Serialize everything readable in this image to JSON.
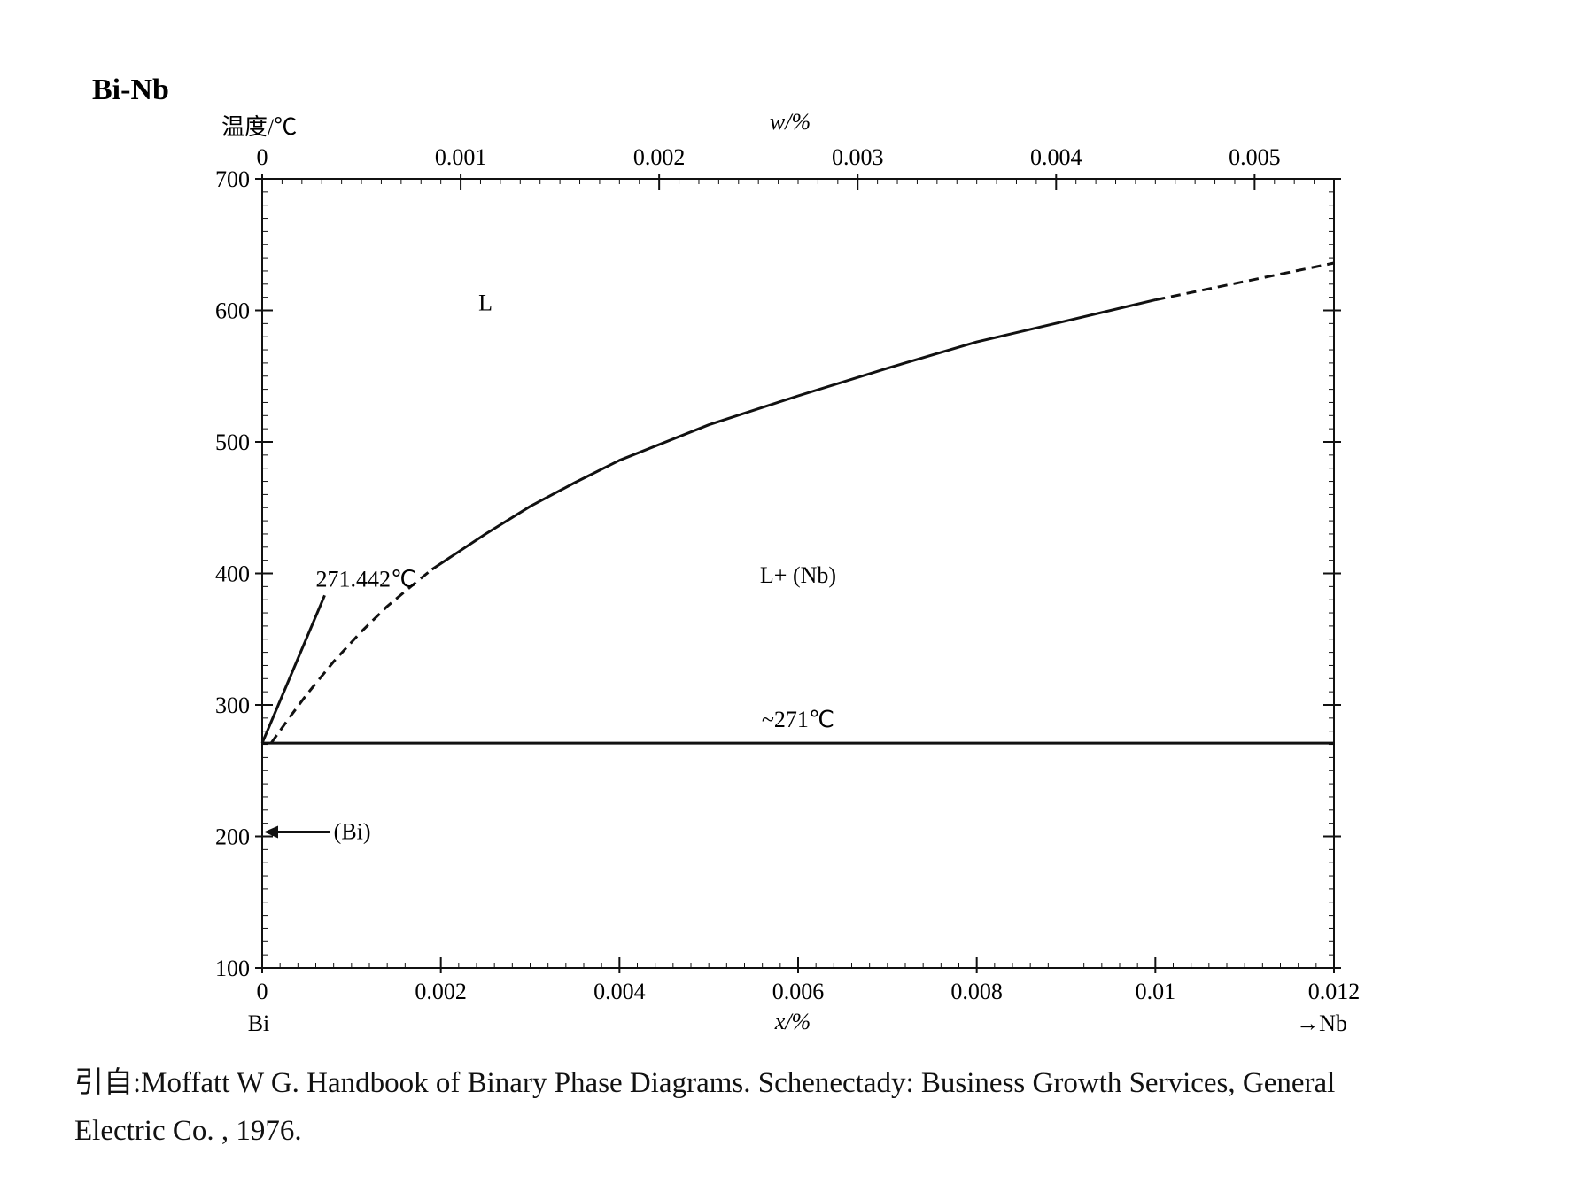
{
  "chart_data": {
    "type": "line",
    "title": "Bi-Nb",
    "ylabel": "温度/℃",
    "xlabel": "x/%",
    "x2label": "w/%",
    "x_left_end_label": "Bi",
    "x_right_end_label": "→Nb",
    "xlim": [
      0,
      0.012
    ],
    "ylim": [
      100,
      700
    ],
    "x_ticks": [
      "0",
      "0.002",
      "0.004",
      "0.006",
      "0.008",
      "0.01",
      "0.012"
    ],
    "x_tick_values": [
      0,
      0.002,
      0.004,
      0.006,
      0.008,
      0.01,
      0.012
    ],
    "y_ticks": [
      "100",
      "200",
      "300",
      "400",
      "500",
      "600",
      "700"
    ],
    "y_tick_values": [
      100,
      200,
      300,
      400,
      500,
      600,
      700
    ],
    "x2_ticks": [
      "0",
      "0.001",
      "0.002",
      "0.003",
      "0.004",
      "0.005"
    ],
    "x2_tick_values": [
      0,
      0.001,
      0.002,
      0.003,
      0.004,
      0.005
    ],
    "x2_max": 0.0054,
    "grid": false,
    "series": [
      {
        "style": "dashed",
        "x": [
          0.0001,
          0.0003,
          0.0005,
          0.0008,
          0.0011,
          0.0014,
          0.0017,
          0.0019
        ],
        "y": [
          271,
          290,
          308,
          333,
          355,
          375,
          392,
          403
        ]
      },
      {
        "style": "solid",
        "x": [
          0.0019,
          0.0025,
          0.003,
          0.0035,
          0.004,
          0.005,
          0.006,
          0.007,
          0.008,
          0.009,
          0.01
        ],
        "y": [
          403,
          430,
          451,
          469,
          486,
          513,
          535,
          556,
          576,
          592,
          608
        ]
      },
      {
        "style": "dashed",
        "x": [
          0.01,
          0.011,
          0.012
        ],
        "y": [
          608,
          622,
          636
        ]
      },
      {
        "style": "solid",
        "x": [
          0,
          0.012
        ],
        "y": [
          271,
          271
        ]
      }
    ],
    "annotations": [
      {
        "text": "L",
        "x": 0.0025,
        "y": 600
      },
      {
        "text": "L+ (Nb)",
        "x": 0.006,
        "y": 393
      },
      {
        "text": "~271℃",
        "x": 0.006,
        "y": 283
      },
      {
        "text": "271.442℃",
        "x": 0.0006,
        "y": 390
      },
      {
        "text": "(Bi)",
        "x": 0.0008,
        "y": 198
      }
    ]
  },
  "citation": {
    "line1": "引自:Moffatt W G. Handbook of Binary Phase Diagrams. Schenectady: Business Growth Services, General",
    "line2": "Electric Co. , 1976."
  }
}
